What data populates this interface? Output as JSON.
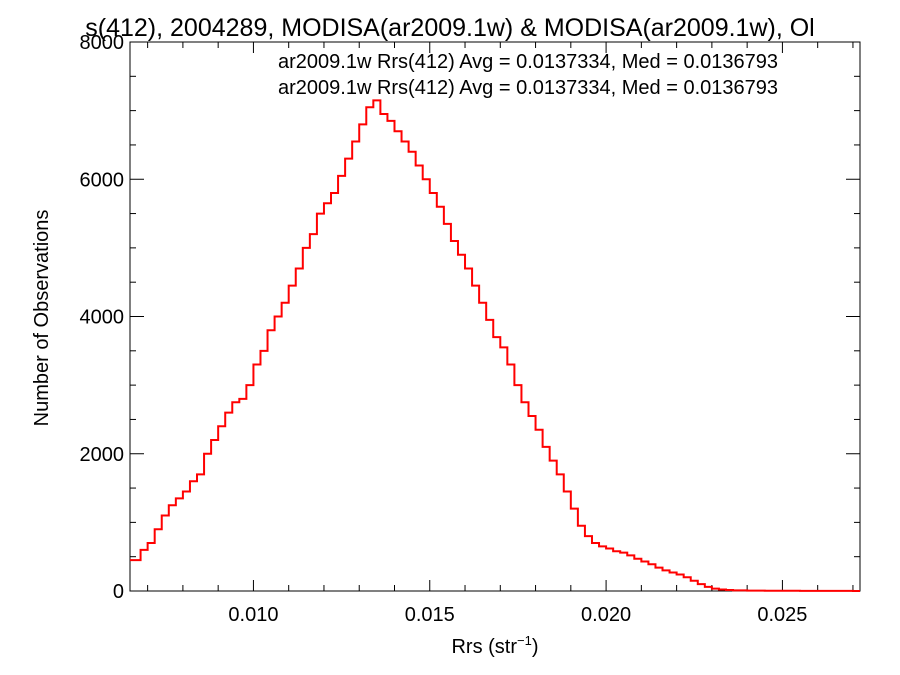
{
  "chart_data": {
    "type": "histogram",
    "title": "s(412), 2004289, MODISA(ar2009.1w) & MODISA(ar2009.1w), Ol",
    "xlabel": "Rrs (str",
    "xlabel_sup": "−1",
    "xlabel_close": ")",
    "ylabel": "Number of Observations",
    "xlim": [
      0.0065,
      0.0272
    ],
    "ylim": [
      0,
      8000
    ],
    "xticks": [
      0.01,
      0.015,
      0.02,
      0.025
    ],
    "xtick_labels": [
      "0.010",
      "0.015",
      "0.020",
      "0.025"
    ],
    "yticks": [
      0,
      2000,
      4000,
      6000,
      8000
    ],
    "ytick_labels": [
      "0",
      "2000",
      "4000",
      "6000",
      "8000"
    ],
    "grid": false,
    "legend_position": "top-right",
    "series": [
      {
        "name": "ar2009.1w Rrs(412) Avg = 0.0137334, Med = 0.0136793",
        "color": "#000000"
      },
      {
        "name": "ar2009.1w Rrs(412) Avg = 0.0137334, Med = 0.0136793",
        "color": "#ff0000",
        "points": [
          [
            0.0065,
            450
          ],
          [
            0.0068,
            600
          ],
          [
            0.007,
            700
          ],
          [
            0.0072,
            900
          ],
          [
            0.0074,
            1100
          ],
          [
            0.0076,
            1250
          ],
          [
            0.0078,
            1350
          ],
          [
            0.008,
            1450
          ],
          [
            0.0082,
            1600
          ],
          [
            0.0084,
            1700
          ],
          [
            0.0086,
            2000
          ],
          [
            0.0088,
            2200
          ],
          [
            0.009,
            2400
          ],
          [
            0.0092,
            2600
          ],
          [
            0.0094,
            2750
          ],
          [
            0.0096,
            2800
          ],
          [
            0.0098,
            3000
          ],
          [
            0.01,
            3300
          ],
          [
            0.0102,
            3500
          ],
          [
            0.0104,
            3800
          ],
          [
            0.0106,
            4000
          ],
          [
            0.0108,
            4200
          ],
          [
            0.011,
            4450
          ],
          [
            0.0112,
            4700
          ],
          [
            0.0114,
            5000
          ],
          [
            0.0116,
            5200
          ],
          [
            0.0118,
            5500
          ],
          [
            0.012,
            5650
          ],
          [
            0.0122,
            5800
          ],
          [
            0.0124,
            6050
          ],
          [
            0.0126,
            6300
          ],
          [
            0.0128,
            6550
          ],
          [
            0.013,
            6800
          ],
          [
            0.0132,
            7050
          ],
          [
            0.0134,
            7150
          ],
          [
            0.0136,
            6950
          ],
          [
            0.0138,
            6850
          ],
          [
            0.014,
            6700
          ],
          [
            0.0142,
            6550
          ],
          [
            0.0144,
            6400
          ],
          [
            0.0146,
            6200
          ],
          [
            0.0148,
            6000
          ],
          [
            0.015,
            5800
          ],
          [
            0.0152,
            5600
          ],
          [
            0.0154,
            5350
          ],
          [
            0.0156,
            5100
          ],
          [
            0.0158,
            4900
          ],
          [
            0.016,
            4700
          ],
          [
            0.0162,
            4450
          ],
          [
            0.0164,
            4200
          ],
          [
            0.0166,
            3950
          ],
          [
            0.0168,
            3700
          ],
          [
            0.017,
            3550
          ],
          [
            0.0172,
            3300
          ],
          [
            0.0174,
            3000
          ],
          [
            0.0176,
            2750
          ],
          [
            0.0178,
            2550
          ],
          [
            0.018,
            2350
          ],
          [
            0.0182,
            2100
          ],
          [
            0.0184,
            1900
          ],
          [
            0.0186,
            1700
          ],
          [
            0.0188,
            1450
          ],
          [
            0.019,
            1200
          ],
          [
            0.0192,
            950
          ],
          [
            0.0194,
            800
          ],
          [
            0.0196,
            700
          ],
          [
            0.0198,
            650
          ],
          [
            0.02,
            620
          ],
          [
            0.0202,
            580
          ],
          [
            0.0204,
            560
          ],
          [
            0.0206,
            520
          ],
          [
            0.0208,
            470
          ],
          [
            0.021,
            430
          ],
          [
            0.0212,
            390
          ],
          [
            0.0214,
            340
          ],
          [
            0.0216,
            300
          ],
          [
            0.0218,
            270
          ],
          [
            0.022,
            240
          ],
          [
            0.0222,
            200
          ],
          [
            0.0224,
            150
          ],
          [
            0.0226,
            100
          ],
          [
            0.0228,
            60
          ],
          [
            0.023,
            35
          ],
          [
            0.0232,
            22
          ],
          [
            0.0234,
            15
          ],
          [
            0.0236,
            10
          ],
          [
            0.024,
            6
          ],
          [
            0.0245,
            4
          ],
          [
            0.025,
            3
          ],
          [
            0.0255,
            2
          ],
          [
            0.026,
            1
          ],
          [
            0.0265,
            1
          ],
          [
            0.027,
            0
          ]
        ]
      }
    ]
  }
}
